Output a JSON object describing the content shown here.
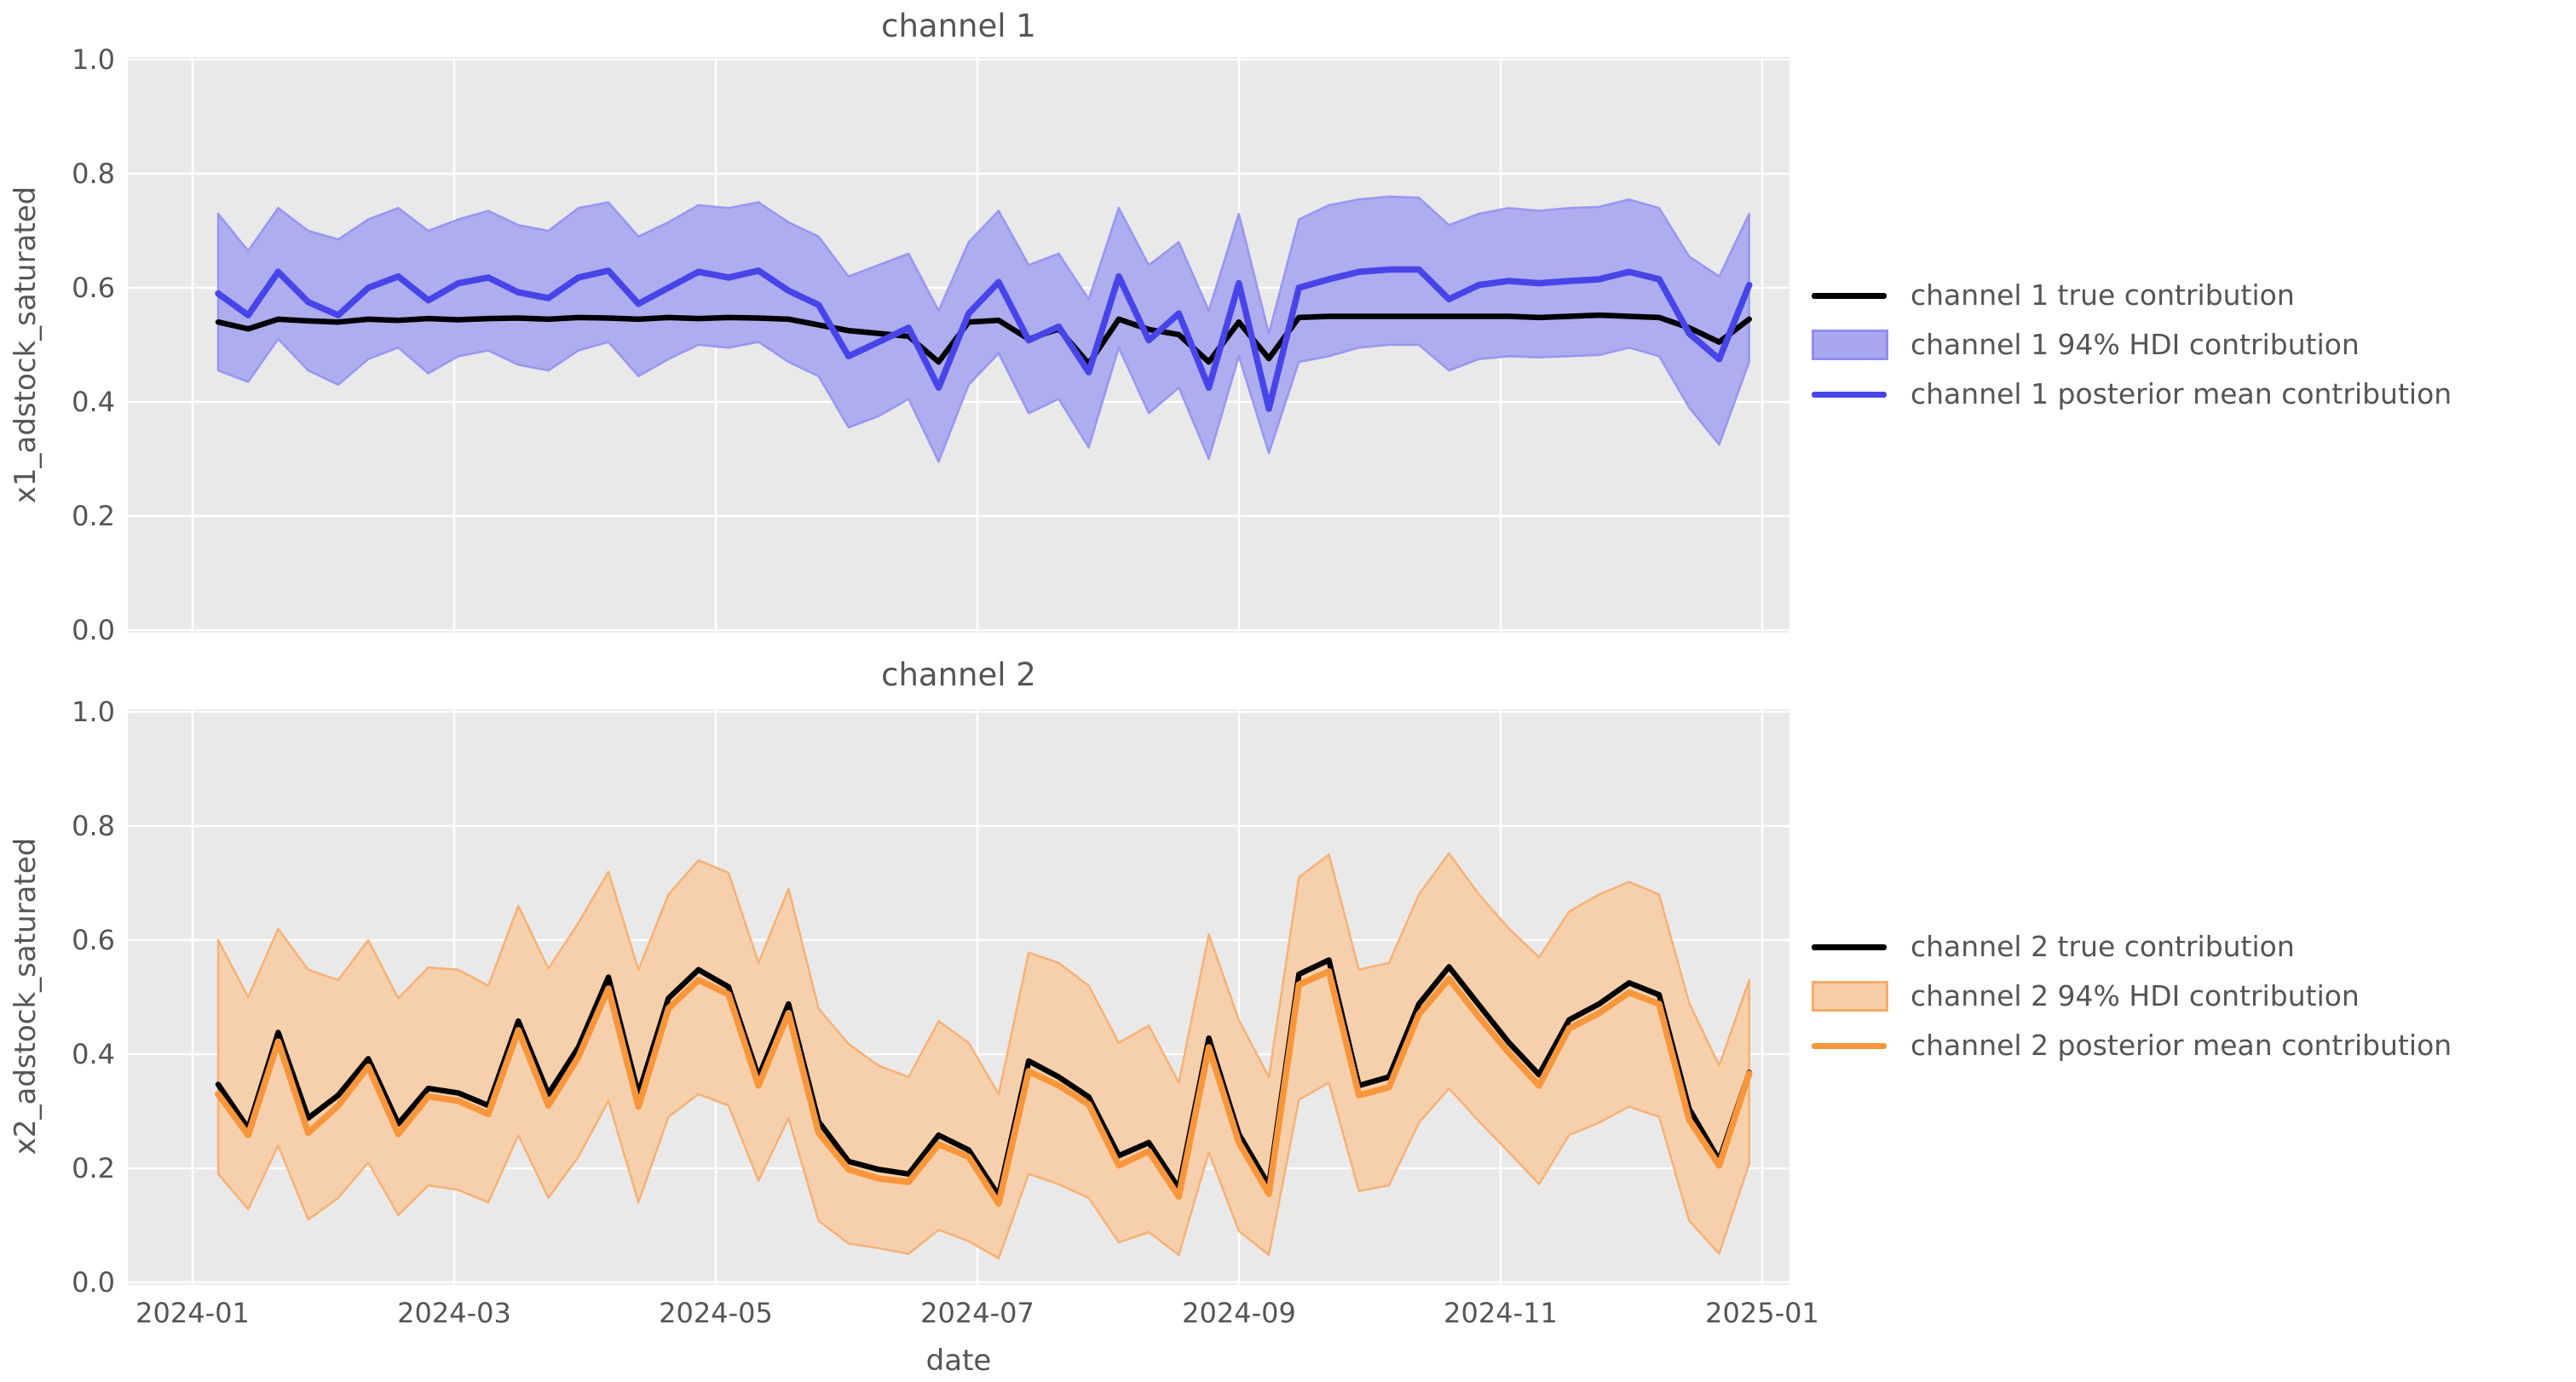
{
  "figure": {
    "background": "#ffffff",
    "plot_background": "#e9e9e9",
    "grid_color": "#ffffff",
    "text_color": "#555555"
  },
  "x_axis": {
    "label": "date",
    "tick_labels": [
      "2024-01",
      "2024-03",
      "2024-05",
      "2024-07",
      "2024-09",
      "2024-11",
      "2025-01"
    ]
  },
  "chart_data": [
    {
      "type": "line",
      "title": "channel 1",
      "xlabel": "date",
      "ylabel": "x1_adstock_saturated",
      "ylim": [
        0.0,
        1.0
      ],
      "grid": true,
      "legend_position": "outside center right",
      "y_ticks": [
        0.0,
        0.2,
        0.4,
        0.6,
        0.8,
        1.0
      ],
      "y_tick_labels": [
        "0.0",
        "0.2",
        "0.4",
        "0.6",
        "0.8",
        "1.0"
      ],
      "x": [
        "2024-01-07",
        "2024-01-14",
        "2024-01-21",
        "2024-01-28",
        "2024-02-04",
        "2024-02-11",
        "2024-02-18",
        "2024-02-25",
        "2024-03-03",
        "2024-03-10",
        "2024-03-17",
        "2024-03-24",
        "2024-03-31",
        "2024-04-07",
        "2024-04-14",
        "2024-04-21",
        "2024-04-28",
        "2024-05-05",
        "2024-05-12",
        "2024-05-19",
        "2024-05-26",
        "2024-06-02",
        "2024-06-09",
        "2024-06-16",
        "2024-06-23",
        "2024-06-30",
        "2024-07-07",
        "2024-07-14",
        "2024-07-21",
        "2024-07-28",
        "2024-08-04",
        "2024-08-11",
        "2024-08-18",
        "2024-08-25",
        "2024-09-01",
        "2024-09-08",
        "2024-09-15",
        "2024-09-22",
        "2024-09-29",
        "2024-10-06",
        "2024-10-13",
        "2024-10-20",
        "2024-10-27",
        "2024-11-03",
        "2024-11-10",
        "2024-11-17",
        "2024-11-24",
        "2024-12-01",
        "2024-12-08",
        "2024-12-15",
        "2024-12-22",
        "2024-12-29"
      ],
      "series": [
        {
          "name": "channel 1 true contribution",
          "kind": "line",
          "color": "#000000",
          "values": [
            0.54,
            0.528,
            0.545,
            0.542,
            0.54,
            0.545,
            0.543,
            0.546,
            0.544,
            0.546,
            0.547,
            0.545,
            0.548,
            0.547,
            0.545,
            0.548,
            0.546,
            0.548,
            0.547,
            0.545,
            0.535,
            0.525,
            0.52,
            0.515,
            0.47,
            0.54,
            0.543,
            0.51,
            0.528,
            0.467,
            0.545,
            0.527,
            0.518,
            0.47,
            0.54,
            0.476,
            0.548,
            0.55,
            0.55,
            0.55,
            0.55,
            0.55,
            0.55,
            0.55,
            0.548,
            0.55,
            0.552,
            0.55,
            0.548,
            0.53,
            0.505,
            0.545
          ]
        },
        {
          "name": "channel 1 94% HDI contribution",
          "kind": "band",
          "fill": "#a8a7ef",
          "edge": "#8f8ef0",
          "lower": [
            0.455,
            0.435,
            0.51,
            0.455,
            0.43,
            0.475,
            0.495,
            0.45,
            0.48,
            0.49,
            0.465,
            0.455,
            0.49,
            0.505,
            0.445,
            0.475,
            0.5,
            0.495,
            0.505,
            0.47,
            0.445,
            0.355,
            0.375,
            0.405,
            0.295,
            0.43,
            0.485,
            0.38,
            0.405,
            0.32,
            0.495,
            0.38,
            0.425,
            0.3,
            0.48,
            0.31,
            0.47,
            0.48,
            0.495,
            0.5,
            0.5,
            0.455,
            0.475,
            0.48,
            0.478,
            0.48,
            0.482,
            0.495,
            0.48,
            0.39,
            0.325,
            0.47
          ],
          "upper": [
            0.73,
            0.665,
            0.74,
            0.7,
            0.685,
            0.72,
            0.74,
            0.7,
            0.72,
            0.735,
            0.71,
            0.7,
            0.74,
            0.75,
            0.69,
            0.715,
            0.745,
            0.74,
            0.75,
            0.715,
            0.69,
            0.62,
            0.64,
            0.66,
            0.56,
            0.68,
            0.735,
            0.64,
            0.66,
            0.58,
            0.74,
            0.64,
            0.68,
            0.56,
            0.73,
            0.52,
            0.72,
            0.745,
            0.755,
            0.76,
            0.758,
            0.71,
            0.73,
            0.74,
            0.735,
            0.74,
            0.742,
            0.755,
            0.74,
            0.655,
            0.62,
            0.73
          ]
        },
        {
          "name": "channel 1 posterior mean contribution",
          "kind": "line",
          "color": "#4745e8",
          "values": [
            0.59,
            0.552,
            0.628,
            0.575,
            0.552,
            0.6,
            0.62,
            0.578,
            0.608,
            0.618,
            0.592,
            0.582,
            0.618,
            0.63,
            0.572,
            0.6,
            0.628,
            0.618,
            0.63,
            0.595,
            0.57,
            0.48,
            0.505,
            0.53,
            0.425,
            0.555,
            0.61,
            0.508,
            0.532,
            0.452,
            0.62,
            0.508,
            0.555,
            0.425,
            0.608,
            0.388,
            0.6,
            0.615,
            0.628,
            0.632,
            0.632,
            0.58,
            0.605,
            0.612,
            0.608,
            0.612,
            0.615,
            0.628,
            0.615,
            0.52,
            0.475,
            0.605
          ]
        }
      ],
      "legend": [
        {
          "marker": "line",
          "color": "#000000",
          "label": "channel 1 true contribution"
        },
        {
          "marker": "band",
          "fill": "#a8a7ef",
          "edge": "#8f8ef0",
          "label": "channel 1 94% HDI contribution"
        },
        {
          "marker": "line",
          "color": "#4745e8",
          "label": "channel 1 posterior mean contribution"
        }
      ]
    },
    {
      "type": "line",
      "title": "channel 2",
      "xlabel": "date",
      "ylabel": "x2_adstock_saturated",
      "ylim": [
        0.0,
        1.0
      ],
      "grid": true,
      "legend_position": "outside center right",
      "y_ticks": [
        0.0,
        0.2,
        0.4,
        0.6,
        0.8,
        1.0
      ],
      "y_tick_labels": [
        "0.0",
        "0.2",
        "0.4",
        "0.6",
        "0.8",
        "1.0"
      ],
      "x": [
        "2024-01-07",
        "2024-01-14",
        "2024-01-21",
        "2024-01-28",
        "2024-02-04",
        "2024-02-11",
        "2024-02-18",
        "2024-02-25",
        "2024-03-03",
        "2024-03-10",
        "2024-03-17",
        "2024-03-24",
        "2024-03-31",
        "2024-04-07",
        "2024-04-14",
        "2024-04-21",
        "2024-04-28",
        "2024-05-05",
        "2024-05-12",
        "2024-05-19",
        "2024-05-26",
        "2024-06-02",
        "2024-06-09",
        "2024-06-16",
        "2024-06-23",
        "2024-06-30",
        "2024-07-07",
        "2024-07-14",
        "2024-07-21",
        "2024-07-28",
        "2024-08-04",
        "2024-08-11",
        "2024-08-18",
        "2024-08-25",
        "2024-09-01",
        "2024-09-08",
        "2024-09-15",
        "2024-09-22",
        "2024-09-29",
        "2024-10-06",
        "2024-10-13",
        "2024-10-20",
        "2024-10-27",
        "2024-11-03",
        "2024-11-10",
        "2024-11-17",
        "2024-11-24",
        "2024-12-01",
        "2024-12-08",
        "2024-12-15",
        "2024-12-22",
        "2024-12-29"
      ],
      "series": [
        {
          "name": "channel 2 true contribution",
          "kind": "line",
          "color": "#000000",
          "values": [
            0.347,
            0.27,
            0.438,
            0.288,
            0.328,
            0.392,
            0.278,
            0.34,
            0.332,
            0.31,
            0.458,
            0.33,
            0.412,
            0.535,
            0.33,
            0.498,
            0.548,
            0.518,
            0.36,
            0.488,
            0.282,
            0.212,
            0.198,
            0.19,
            0.258,
            0.232,
            0.152,
            0.388,
            0.36,
            0.325,
            0.222,
            0.245,
            0.165,
            0.428,
            0.26,
            0.17,
            0.54,
            0.565,
            0.345,
            0.36,
            0.488,
            0.553,
            0.486,
            0.42,
            0.364,
            0.46,
            0.488,
            0.525,
            0.504,
            0.304,
            0.214,
            0.368
          ]
        },
        {
          "name": "channel 2 94% HDI contribution",
          "kind": "band",
          "fill": "#f6cda6",
          "edge": "#f7a967",
          "lower": [
            0.19,
            0.128,
            0.24,
            0.11,
            0.148,
            0.21,
            0.118,
            0.17,
            0.162,
            0.14,
            0.258,
            0.148,
            0.22,
            0.318,
            0.14,
            0.29,
            0.33,
            0.31,
            0.178,
            0.288,
            0.108,
            0.068,
            0.06,
            0.05,
            0.092,
            0.072,
            0.042,
            0.19,
            0.172,
            0.148,
            0.07,
            0.088,
            0.048,
            0.228,
            0.09,
            0.048,
            0.32,
            0.35,
            0.16,
            0.17,
            0.28,
            0.34,
            0.282,
            0.228,
            0.172,
            0.258,
            0.28,
            0.308,
            0.29,
            0.108,
            0.05,
            0.208
          ],
          "upper": [
            0.6,
            0.5,
            0.62,
            0.548,
            0.53,
            0.6,
            0.498,
            0.552,
            0.548,
            0.52,
            0.66,
            0.55,
            0.63,
            0.72,
            0.548,
            0.68,
            0.74,
            0.718,
            0.56,
            0.69,
            0.48,
            0.418,
            0.38,
            0.36,
            0.458,
            0.42,
            0.33,
            0.578,
            0.56,
            0.52,
            0.42,
            0.45,
            0.35,
            0.61,
            0.46,
            0.36,
            0.71,
            0.75,
            0.548,
            0.56,
            0.68,
            0.752,
            0.68,
            0.62,
            0.57,
            0.65,
            0.68,
            0.702,
            0.68,
            0.49,
            0.38,
            0.53
          ]
        },
        {
          "name": "channel 2 posterior mean contribution",
          "kind": "line",
          "color": "#f8963c",
          "values": [
            0.33,
            0.258,
            0.422,
            0.262,
            0.31,
            0.378,
            0.26,
            0.326,
            0.318,
            0.295,
            0.442,
            0.31,
            0.395,
            0.515,
            0.308,
            0.48,
            0.53,
            0.505,
            0.345,
            0.472,
            0.262,
            0.198,
            0.182,
            0.176,
            0.242,
            0.22,
            0.138,
            0.37,
            0.345,
            0.312,
            0.205,
            0.23,
            0.15,
            0.412,
            0.245,
            0.155,
            0.522,
            0.545,
            0.328,
            0.342,
            0.47,
            0.532,
            0.465,
            0.402,
            0.345,
            0.445,
            0.472,
            0.508,
            0.488,
            0.285,
            0.205,
            0.366
          ]
        }
      ],
      "legend": [
        {
          "marker": "line",
          "color": "#000000",
          "label": "channel 2 true contribution"
        },
        {
          "marker": "band",
          "fill": "#f6cda6",
          "edge": "#f7a967",
          "label": "channel 2 94% HDI contribution"
        },
        {
          "marker": "line",
          "color": "#f8963c",
          "label": "channel 2 posterior mean contribution"
        }
      ]
    }
  ]
}
